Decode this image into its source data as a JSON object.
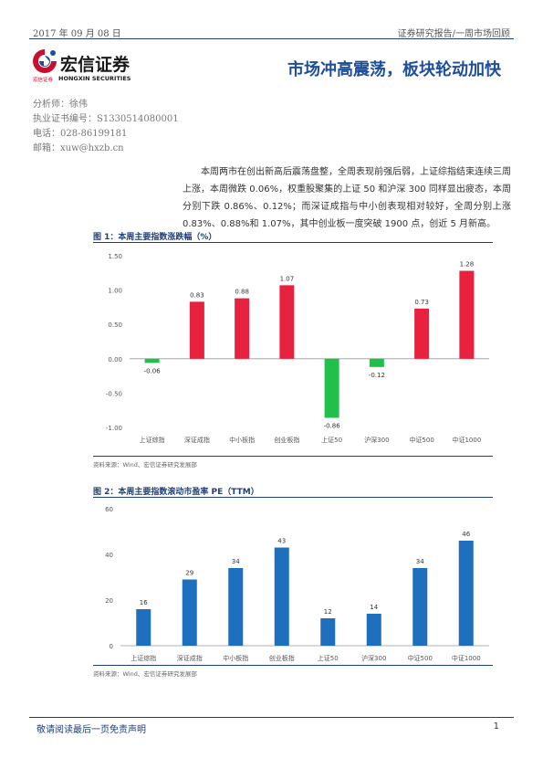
{
  "header": {
    "date": "2017 年 09 月 08 日",
    "category": "证券研究报告/一周市场回顾"
  },
  "logo": {
    "name_cn": "宏信证券",
    "sub_cn": "宏信证券",
    "name_en": "HONGXIN SECURITIES",
    "colors": {
      "red": "#c8102e",
      "blue": "#1f4e9c"
    }
  },
  "title": "市场冲高震荡，板块轮动加快",
  "analyst": {
    "name": "分析师：徐伟",
    "license": "执业证书编号：S1330514080001",
    "phone": "电话：028-86199181",
    "email": "邮箱：xuw@hxzb.cn"
  },
  "summary": "本周两市在创出新高后震荡盘整，全周表现前强后弱，上证综指结束连续三周上涨，本周微跌 0.06%，权重股聚集的上证 50 和沪深 300 同样显出疲态，本周分别下跌 0.86%、0.12%；而深证成指与中小创表现相对较好，全周分别上涨 0.83%、0.88%和 1.07%，其中创业板一度突破 1900 点，创近 5 月新高。",
  "figures": [
    {
      "title": "图 1：本周主要指数涨跌幅（%）",
      "source": "资料来源：Wind、宏信证券研究发展部"
    },
    {
      "title": "图 2：本周主要指数滚动市盈率 PE（TTM）",
      "source": "资料来源：Wind、宏信证券研究发展部"
    }
  ],
  "chart_data": [
    {
      "type": "bar",
      "categories": [
        "上证综指",
        "深证成指",
        "中小板指",
        "创业板指",
        "上证50",
        "沪深300",
        "中证500",
        "中证1000"
      ],
      "values": [
        -0.06,
        0.83,
        0.88,
        1.07,
        -0.86,
        -0.12,
        0.73,
        1.28
      ],
      "value_labels": [
        "-0.06",
        "0.83",
        "0.88",
        "1.07",
        "-0.86",
        "-0.12",
        "0.73",
        "1.28"
      ],
      "ylim": [
        -1.0,
        1.5
      ],
      "yticks": [
        "-1.00",
        "-0.50",
        "0.00",
        "0.50",
        "1.00",
        "1.50"
      ],
      "ytick_values": [
        -1.0,
        -0.5,
        0.0,
        0.5,
        1.0,
        1.5
      ],
      "colors": {
        "positive": "#e8213f",
        "negative": "#22c04a"
      },
      "grid": false
    },
    {
      "type": "bar",
      "categories": [
        "上证综指",
        "深证成指",
        "中小板指",
        "创业板指",
        "上证50",
        "沪深300",
        "中证500",
        "中证1000"
      ],
      "values": [
        16,
        29,
        34,
        43,
        12,
        14,
        34,
        46
      ],
      "value_labels": [
        "16",
        "29",
        "34",
        "43",
        "12",
        "14",
        "34",
        "46"
      ],
      "ylim": [
        0,
        60
      ],
      "yticks": [
        "0",
        "20",
        "40",
        "60"
      ],
      "ytick_values": [
        0,
        20,
        40,
        60
      ],
      "colors": {
        "bar": "#1f6fbf"
      },
      "grid": false
    }
  ],
  "footer": {
    "disclaimer": "敬请阅读最后一页免责声明",
    "page": "1"
  }
}
